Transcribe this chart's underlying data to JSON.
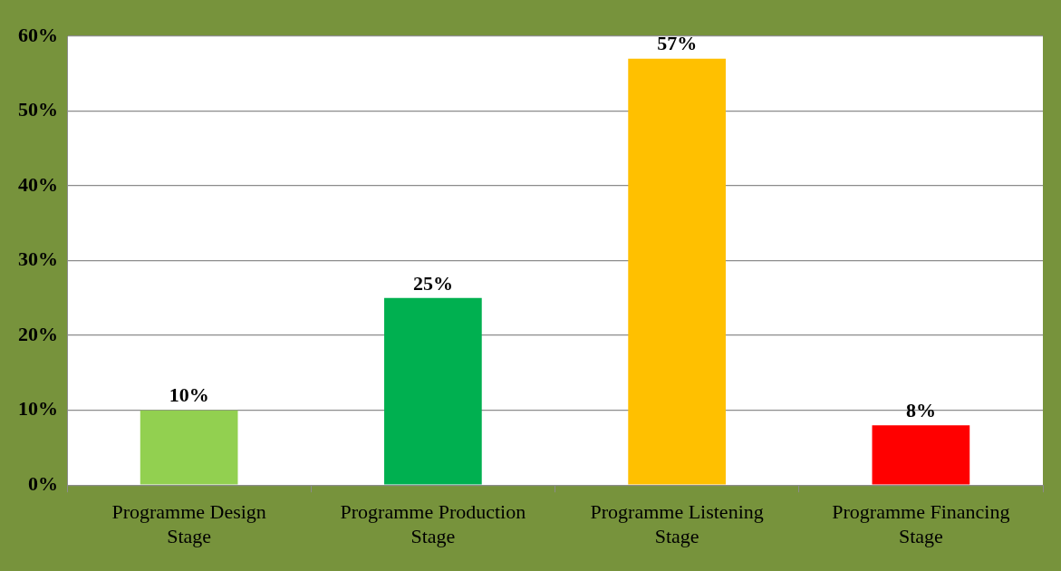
{
  "chart_data": {
    "type": "bar",
    "categories": [
      "Programme Design Stage",
      "Programme Production Stage",
      "Programme Listening Stage",
      "Programme Financing Stage"
    ],
    "values": [
      10,
      25,
      57,
      8
    ],
    "colors": [
      "#92d050",
      "#00b050",
      "#ffc000",
      "#ff0000"
    ],
    "value_labels": [
      "10%",
      "25%",
      "57%",
      "8%"
    ],
    "ylim": [
      0,
      60
    ],
    "yticks": [
      {
        "value": 0,
        "label": "0%"
      },
      {
        "value": 10,
        "label": "10%"
      },
      {
        "value": 20,
        "label": "20%"
      },
      {
        "value": 30,
        "label": "30%"
      },
      {
        "value": 40,
        "label": "40%"
      },
      {
        "value": 50,
        "label": "50%"
      },
      {
        "value": 60,
        "label": "60%"
      }
    ],
    "grid": "y"
  }
}
